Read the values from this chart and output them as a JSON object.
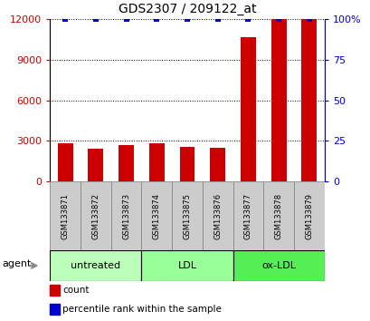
{
  "title": "GDS2307 / 209122_at",
  "samples": [
    "GSM133871",
    "GSM133872",
    "GSM133873",
    "GSM133874",
    "GSM133875",
    "GSM133876",
    "GSM133877",
    "GSM133878",
    "GSM133879"
  ],
  "counts": [
    2800,
    2450,
    2700,
    2800,
    2550,
    2500,
    10700,
    12000,
    12000
  ],
  "percentiles_y": [
    100,
    100,
    100,
    100,
    100,
    100,
    100,
    100,
    100
  ],
  "bar_color": "#cc0000",
  "dot_color": "#0000cc",
  "ylim_left": [
    0,
    12000
  ],
  "ylim_right": [
    0,
    100
  ],
  "yticks_left": [
    0,
    3000,
    6000,
    9000,
    12000
  ],
  "yticks_right": [
    0,
    25,
    50,
    75,
    100
  ],
  "yticklabels_right": [
    "0",
    "25",
    "50",
    "75",
    "100%"
  ],
  "groups": [
    {
      "label": "untreated",
      "start": 0,
      "end": 3,
      "color": "#bbffbb"
    },
    {
      "label": "LDL",
      "start": 3,
      "end": 6,
      "color": "#99ff99"
    },
    {
      "label": "ox-LDL",
      "start": 6,
      "end": 9,
      "color": "#55ee55"
    }
  ],
  "agent_label": "agent",
  "legend_items": [
    {
      "color": "#cc0000",
      "label": "count"
    },
    {
      "color": "#0000cc",
      "label": "percentile rank within the sample"
    }
  ],
  "background_color": "#ffffff",
  "bar_width": 0.5,
  "sample_cell_color": "#cccccc",
  "sample_cell_edge": "#888888"
}
